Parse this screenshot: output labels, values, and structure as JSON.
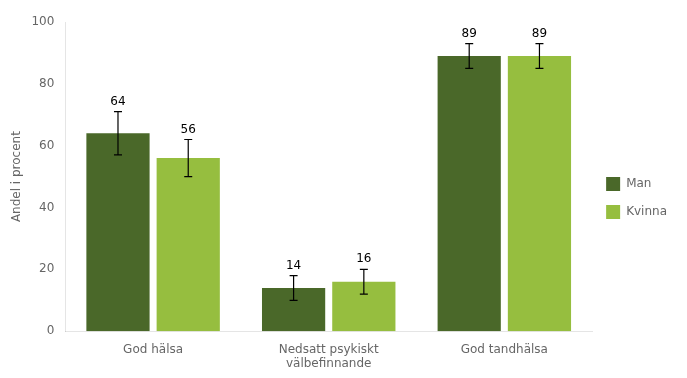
{
  "chart_data": {
    "type": "bar",
    "categories": [
      "God hälsa",
      "Nedsatt psykiskt\nvälbefinnande",
      "God tandhälsa"
    ],
    "series": [
      {
        "name": "Man",
        "color": "#4a6829",
        "values": [
          64,
          14,
          89
        ],
        "errors": [
          7,
          4,
          4
        ]
      },
      {
        "name": "Kvinna",
        "color": "#96be3f",
        "values": [
          56,
          16,
          89
        ],
        "errors": [
          6,
          4,
          4
        ]
      }
    ],
    "ylabel": "Andel i procent",
    "ylim": [
      0,
      100
    ],
    "yticks": [
      0,
      20,
      40,
      60,
      80,
      100
    ],
    "grid": false,
    "legend": "right",
    "data_labels": true
  }
}
